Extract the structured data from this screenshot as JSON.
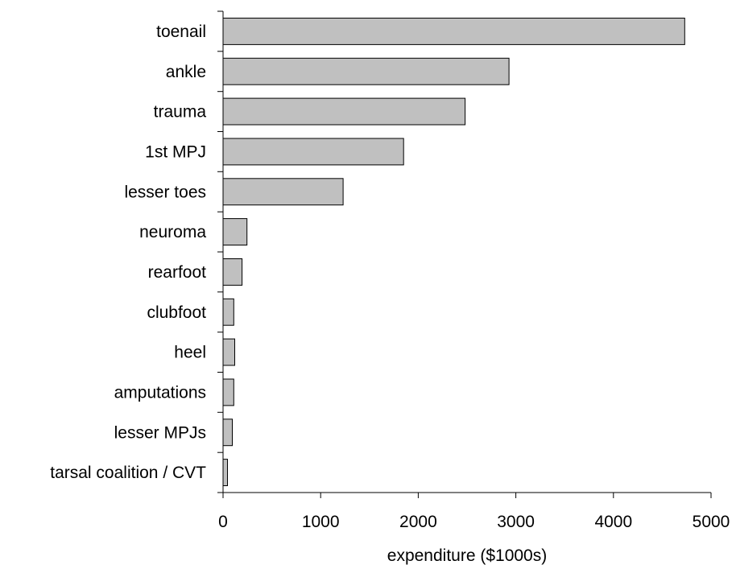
{
  "chart_data": {
    "type": "bar",
    "orientation": "horizontal",
    "categories": [
      "toenail",
      "ankle",
      "trauma",
      "1st MPJ",
      "lesser toes",
      "neuroma",
      "rearfoot",
      "clubfoot",
      "heel",
      "amputations",
      "lesser MPJs",
      "tarsal coalition / CVT"
    ],
    "values": [
      4730,
      2930,
      2480,
      1850,
      1230,
      245,
      195,
      110,
      120,
      110,
      95,
      45
    ],
    "title": "",
    "xlabel": "expenditure ($1000s)",
    "ylabel": "",
    "xlim": [
      0,
      5000
    ],
    "xticks": [
      "0",
      "1000",
      "2000",
      "3000",
      "4000",
      "5000"
    ],
    "grid": false,
    "bar_color": "#c0c0c0",
    "edge_color": "#000000"
  }
}
